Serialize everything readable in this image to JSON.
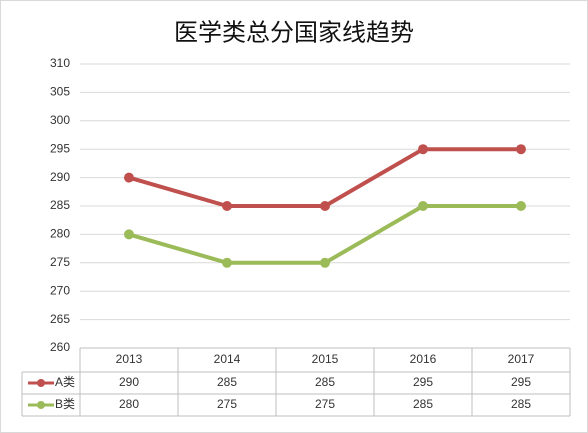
{
  "chart_data": {
    "type": "line",
    "title": "医学类总分国家线趋势",
    "categories": [
      "2013",
      "2014",
      "2015",
      "2016",
      "2017"
    ],
    "series": [
      {
        "name": "A类",
        "color": "#c0504d",
        "values": [
          290,
          285,
          285,
          295,
          295
        ]
      },
      {
        "name": "B类",
        "color": "#9bbb59",
        "values": [
          280,
          275,
          275,
          285,
          285
        ]
      }
    ],
    "ylim": [
      260,
      310
    ],
    "yticks": [
      260,
      265,
      270,
      275,
      280,
      285,
      290,
      295,
      300,
      305,
      310
    ],
    "grid": true
  }
}
